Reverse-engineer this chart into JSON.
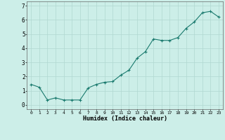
{
  "x": [
    0,
    1,
    2,
    3,
    4,
    5,
    6,
    7,
    8,
    9,
    10,
    11,
    12,
    13,
    14,
    15,
    16,
    17,
    18,
    19,
    20,
    21,
    22,
    23
  ],
  "y": [
    1.45,
    1.25,
    0.35,
    0.5,
    0.35,
    0.35,
    0.35,
    1.2,
    1.45,
    1.6,
    1.65,
    2.1,
    2.45,
    3.3,
    3.75,
    4.65,
    4.55,
    4.55,
    4.75,
    5.4,
    5.85,
    6.5,
    6.6,
    6.2
  ],
  "xlabel": "Humidex (Indice chaleur)",
  "ylim": [
    -0.3,
    7.3
  ],
  "xlim": [
    -0.5,
    23.5
  ],
  "yticks": [
    0,
    1,
    2,
    3,
    4,
    5,
    6,
    7
  ],
  "xticks": [
    0,
    1,
    2,
    3,
    4,
    5,
    6,
    7,
    8,
    9,
    10,
    11,
    12,
    13,
    14,
    15,
    16,
    17,
    18,
    19,
    20,
    21,
    22,
    23
  ],
  "line_color": "#1a7a6e",
  "marker_color": "#1a7a6e",
  "bg_color": "#cceee8",
  "grid_color": "#b0d8d0"
}
